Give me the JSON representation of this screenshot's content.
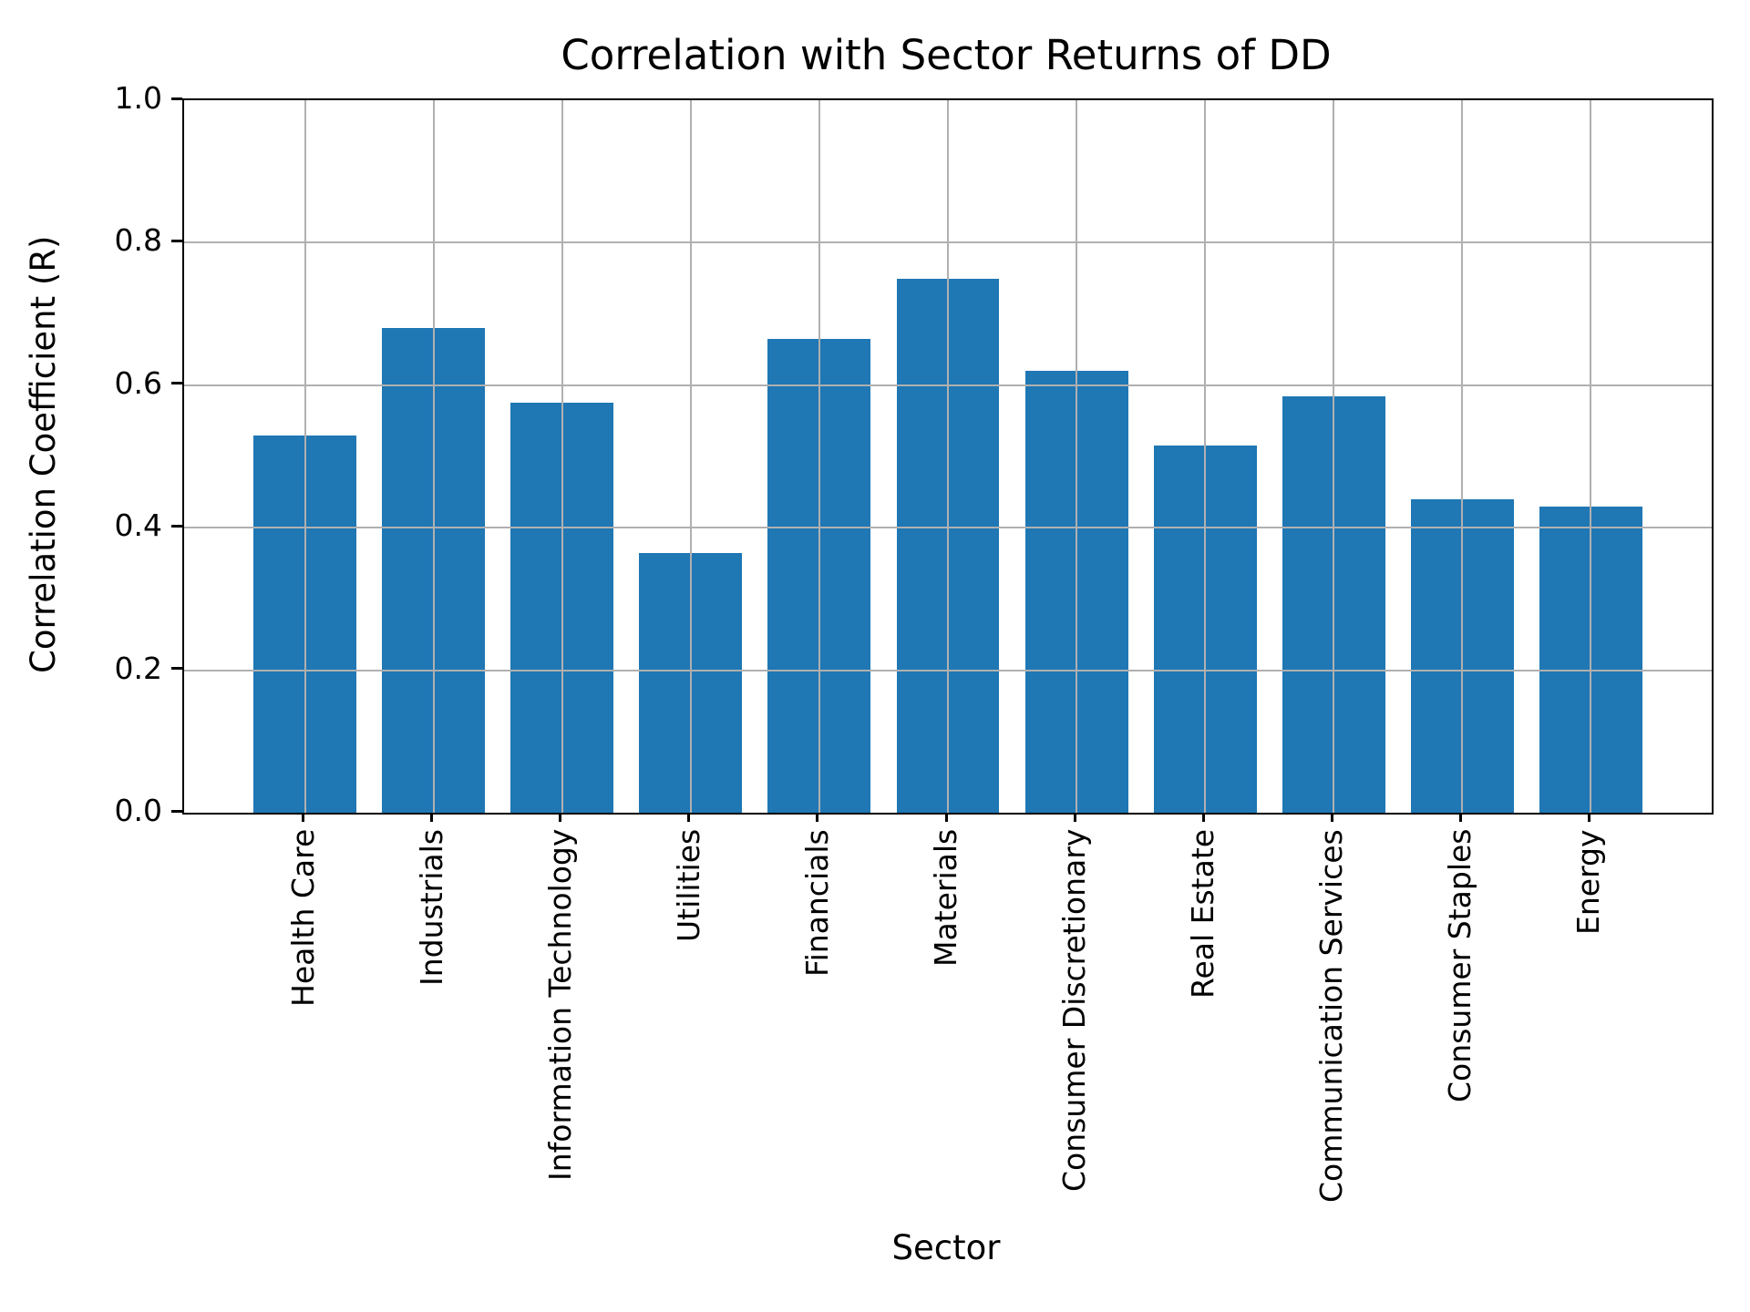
{
  "chart_data": {
    "type": "bar",
    "title": "Correlation with Sector Returns of DD",
    "xlabel": "Sector",
    "ylabel": "Correlation Coefficient (R)",
    "categories": [
      "Health Care",
      "Industrials",
      "Information Technology",
      "Utilities",
      "Financials",
      "Materials",
      "Consumer Discretionary",
      "Real Estate",
      "Communication Services",
      "Consumer Staples",
      "Energy"
    ],
    "values": [
      0.53,
      0.68,
      0.575,
      0.365,
      0.665,
      0.75,
      0.62,
      0.515,
      0.585,
      0.44,
      0.43
    ],
    "ylim": [
      0.0,
      1.0
    ],
    "yticks": [
      0.0,
      0.2,
      0.4,
      0.6,
      0.8,
      1.0
    ],
    "ytick_labels": [
      "0.0",
      "0.2",
      "0.4",
      "0.6",
      "0.8",
      "1.0"
    ],
    "x_tick_rotation": 90,
    "grid": true,
    "grid_over_bars": true,
    "bar_color": "#1f77b4",
    "grid_color": "#b0b0b0",
    "spine_color": "#000000",
    "background_color": "#ffffff"
  }
}
